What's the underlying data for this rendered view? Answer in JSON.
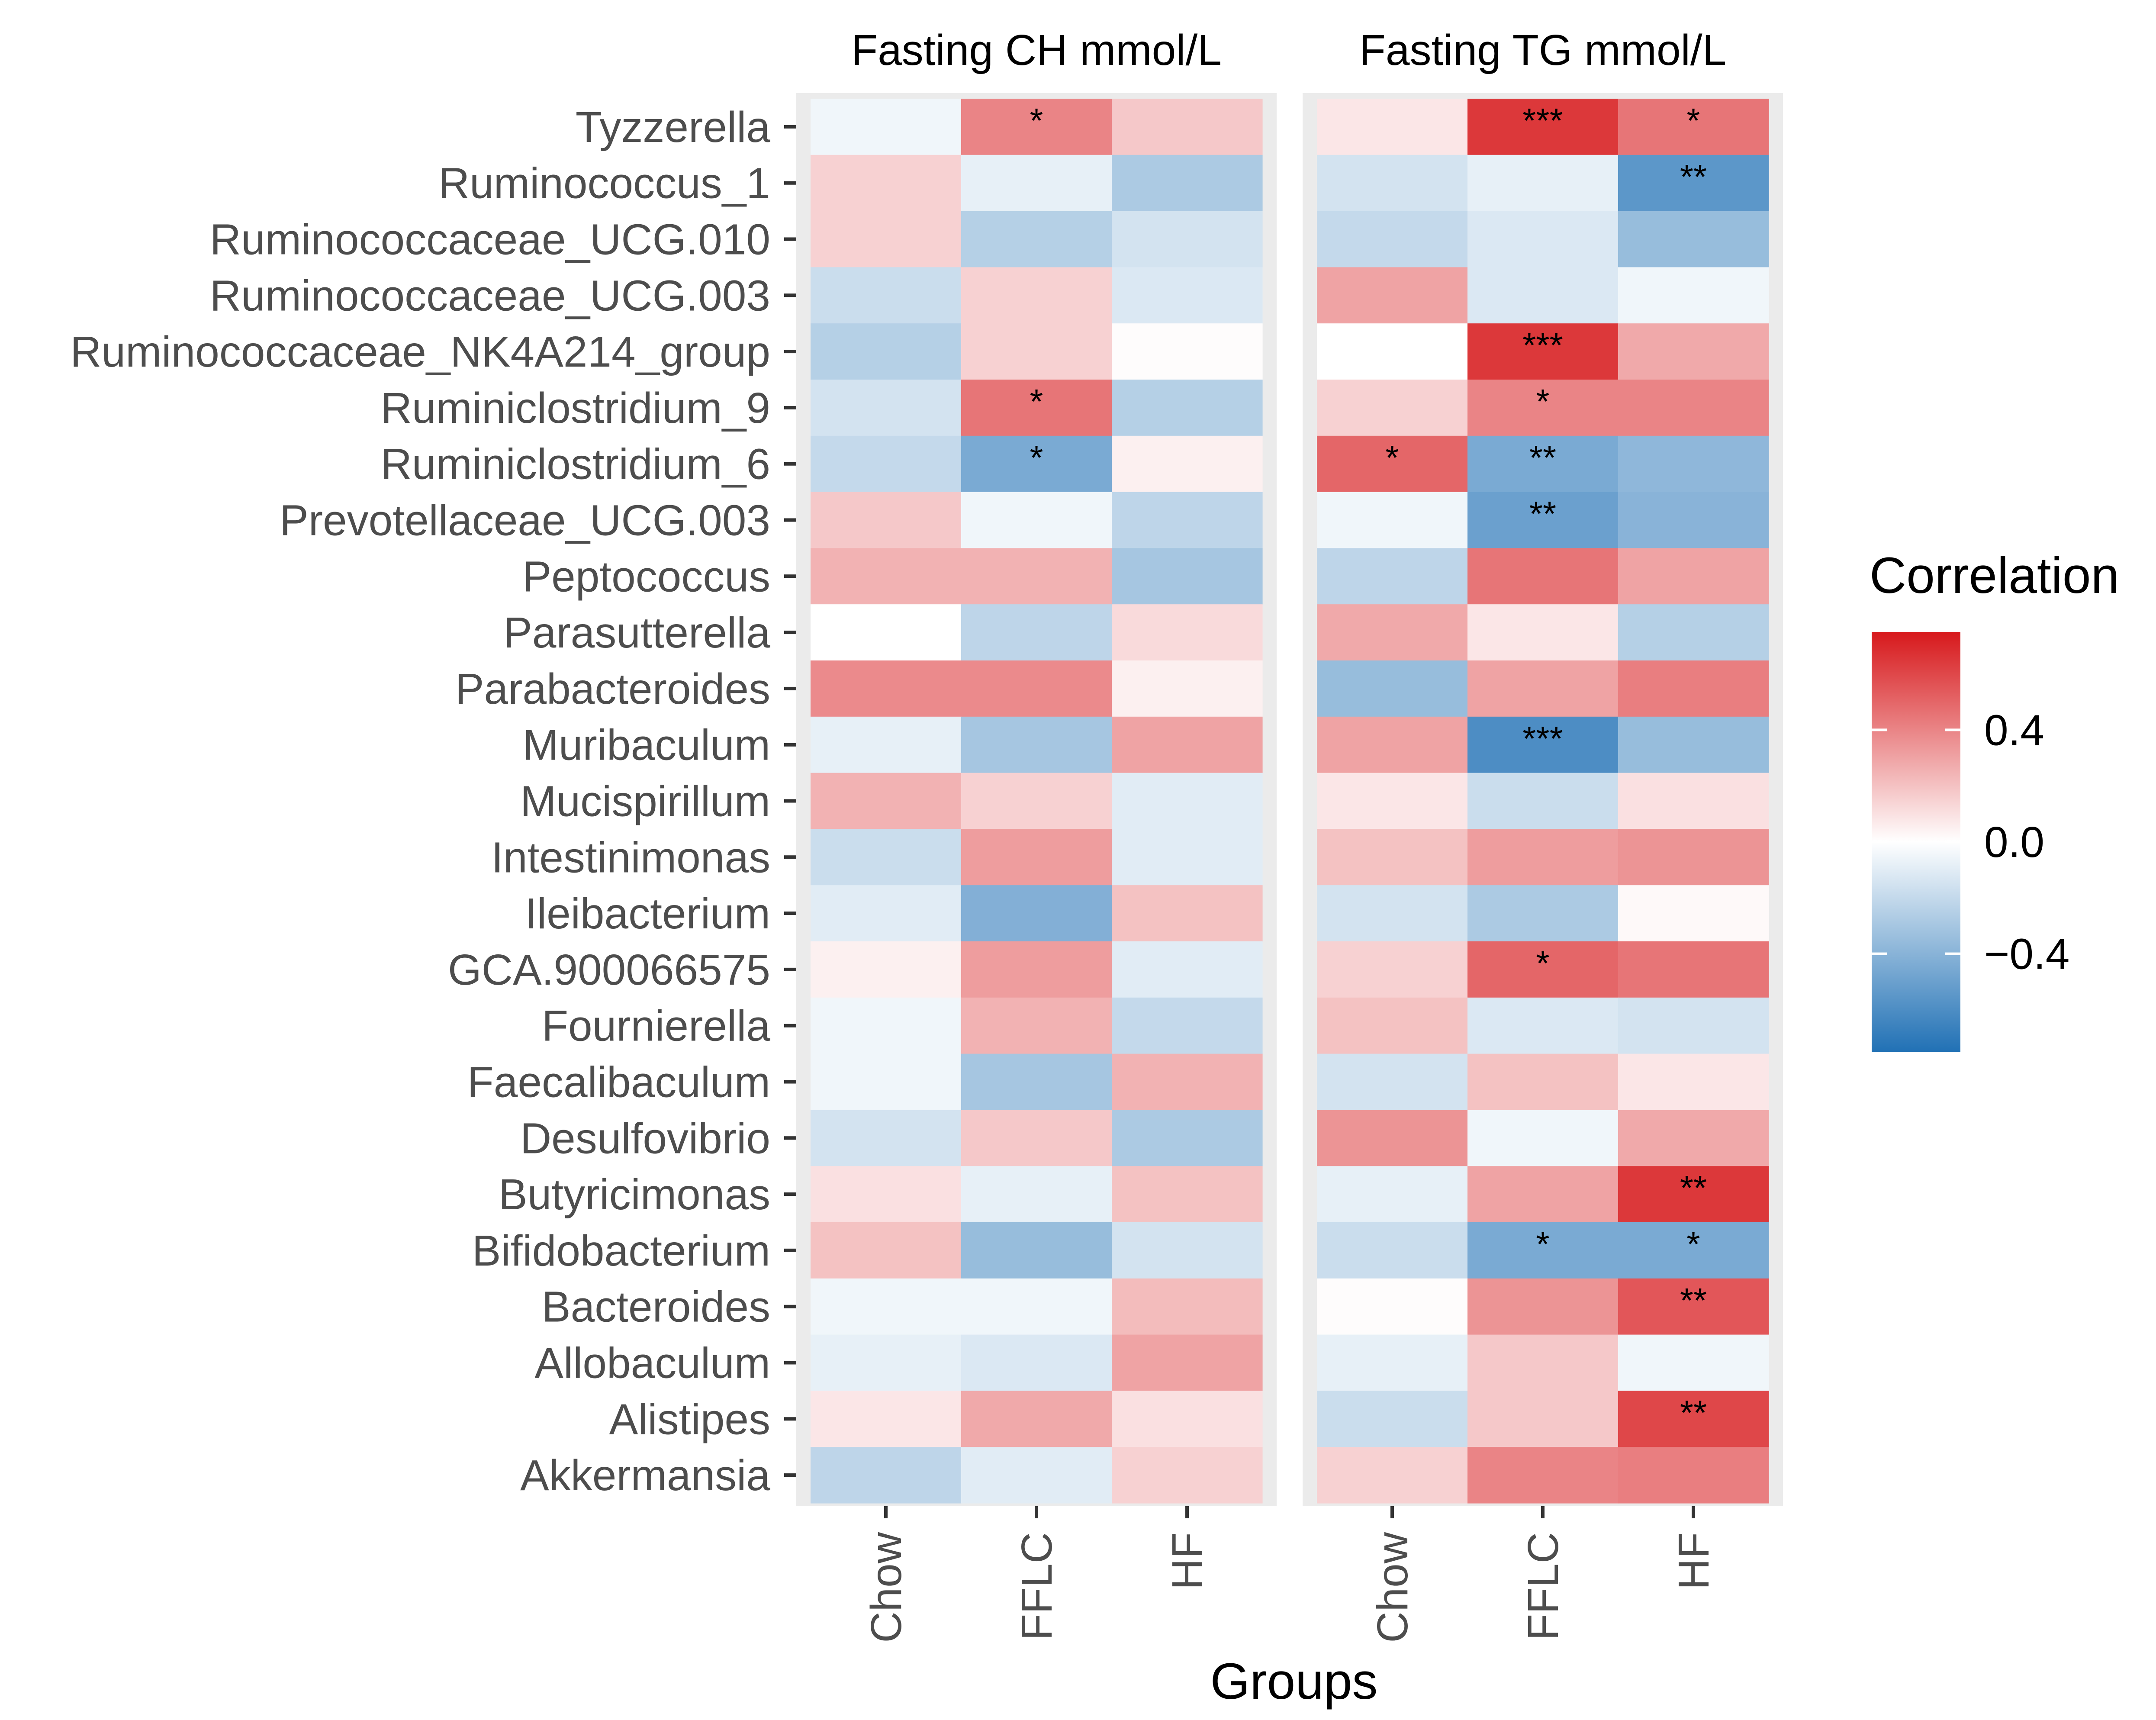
{
  "chart_data": {
    "type": "heatmap",
    "xlabel": "Groups",
    "groups": [
      "Chow",
      "FFLC",
      "HF"
    ],
    "taxa": [
      "Tyzzerella",
      "Ruminococcus_1",
      "Ruminococcaceae_UCG.010",
      "Ruminococcaceae_UCG.003",
      "Ruminococcaceae_NK4A214_group",
      "Ruminiclostridium_9",
      "Ruminiclostridium_6",
      "Prevotellaceae_UCG.003",
      "Peptococcus",
      "Parasutterella",
      "Parabacteroides",
      "Muribaculum",
      "Mucispirillum",
      "Intestinimonas",
      "Ileibacterium",
      "GCA.900066575",
      "Fournierella",
      "Faecalibaculum",
      "Desulfovibrio",
      "Butyricimonas",
      "Bifidobacterium",
      "Bacteroides",
      "Allobaculum",
      "Alistipes",
      "Akkermansia"
    ],
    "panels": [
      {
        "title": "Fasting CH mmol/L",
        "values": [
          [
            -0.05,
            0.4,
            0.18
          ],
          [
            0.15,
            -0.08,
            -0.28
          ],
          [
            0.15,
            -0.25,
            -0.15
          ],
          [
            -0.18,
            0.15,
            -0.12
          ],
          [
            -0.25,
            0.15,
            0.01
          ],
          [
            -0.15,
            0.45,
            -0.25
          ],
          [
            -0.2,
            -0.45,
            0.05
          ],
          [
            0.18,
            -0.05,
            -0.22
          ],
          [
            0.25,
            0.25,
            -0.3
          ],
          [
            0.0,
            -0.22,
            0.12
          ],
          [
            0.38,
            0.38,
            0.05
          ],
          [
            -0.08,
            -0.3,
            0.3
          ],
          [
            0.25,
            0.15,
            -0.1
          ],
          [
            -0.18,
            0.32,
            -0.1
          ],
          [
            -0.1,
            -0.42,
            0.2
          ],
          [
            0.05,
            0.32,
            -0.1
          ],
          [
            -0.05,
            0.25,
            -0.2
          ],
          [
            -0.05,
            -0.3,
            0.25
          ],
          [
            -0.15,
            0.18,
            -0.28
          ],
          [
            0.1,
            -0.08,
            0.2
          ],
          [
            0.2,
            -0.35,
            -0.15
          ],
          [
            -0.05,
            -0.05,
            0.22
          ],
          [
            -0.08,
            -0.12,
            0.3
          ],
          [
            0.08,
            0.28,
            0.1
          ],
          [
            -0.22,
            -0.1,
            0.15
          ]
        ],
        "significance": [
          [
            "",
            "*",
            ""
          ],
          [
            "",
            "",
            ""
          ],
          [
            "",
            "",
            ""
          ],
          [
            "",
            "",
            ""
          ],
          [
            "",
            "",
            ""
          ],
          [
            "",
            "*",
            ""
          ],
          [
            "",
            "*",
            ""
          ],
          [
            "",
            "",
            ""
          ],
          [
            "",
            "",
            ""
          ],
          [
            "",
            "",
            ""
          ],
          [
            "",
            "",
            ""
          ],
          [
            "",
            "",
            ""
          ],
          [
            "",
            "",
            ""
          ],
          [
            "",
            "",
            ""
          ],
          [
            "",
            "",
            ""
          ],
          [
            "",
            "",
            ""
          ],
          [
            "",
            "",
            ""
          ],
          [
            "",
            "",
            ""
          ],
          [
            "",
            "",
            ""
          ],
          [
            "",
            "",
            ""
          ],
          [
            "",
            "",
            ""
          ],
          [
            "",
            "",
            ""
          ],
          [
            "",
            "",
            ""
          ],
          [
            "",
            "",
            ""
          ],
          [
            "",
            "",
            ""
          ]
        ]
      },
      {
        "title": "Fasting TG mmol/L",
        "values": [
          [
            0.08,
            0.65,
            0.45
          ],
          [
            -0.15,
            -0.08,
            -0.55
          ],
          [
            -0.2,
            -0.12,
            -0.35
          ],
          [
            0.3,
            -0.12,
            -0.05
          ],
          [
            0.0,
            0.65,
            0.28
          ],
          [
            0.15,
            0.4,
            0.4
          ],
          [
            0.5,
            -0.45,
            -0.38
          ],
          [
            -0.05,
            -0.5,
            -0.4
          ],
          [
            -0.22,
            0.45,
            0.3
          ],
          [
            0.28,
            0.08,
            -0.25
          ],
          [
            -0.35,
            0.3,
            0.42
          ],
          [
            0.3,
            -0.6,
            -0.35
          ],
          [
            0.08,
            -0.18,
            0.1
          ],
          [
            0.2,
            0.32,
            0.35
          ],
          [
            -0.15,
            -0.28,
            0.02
          ],
          [
            0.15,
            0.5,
            0.45
          ],
          [
            0.2,
            -0.12,
            -0.15
          ],
          [
            -0.15,
            0.2,
            0.08
          ],
          [
            0.35,
            -0.05,
            0.28
          ],
          [
            -0.08,
            0.3,
            0.65
          ],
          [
            -0.18,
            -0.45,
            -0.45
          ],
          [
            0.01,
            0.35,
            0.55
          ],
          [
            -0.08,
            0.18,
            -0.05
          ],
          [
            -0.18,
            0.18,
            0.6
          ],
          [
            0.15,
            0.4,
            0.42
          ]
        ],
        "significance": [
          [
            "",
            "***",
            "*"
          ],
          [
            "",
            "",
            "**"
          ],
          [
            "",
            "",
            ""
          ],
          [
            "",
            "",
            ""
          ],
          [
            "",
            "***",
            ""
          ],
          [
            "",
            "*",
            ""
          ],
          [
            "*",
            "**",
            ""
          ],
          [
            "",
            "**",
            ""
          ],
          [
            "",
            "",
            ""
          ],
          [
            "",
            "",
            ""
          ],
          [
            "",
            "",
            ""
          ],
          [
            "",
            "***",
            ""
          ],
          [
            "",
            "",
            ""
          ],
          [
            "",
            "",
            ""
          ],
          [
            "",
            "",
            ""
          ],
          [
            "",
            "*",
            ""
          ],
          [
            "",
            "",
            ""
          ],
          [
            "",
            "",
            ""
          ],
          [
            "",
            "",
            ""
          ],
          [
            "",
            "",
            "**"
          ],
          [
            "",
            "*",
            "*"
          ],
          [
            "",
            "",
            "**"
          ],
          [
            "",
            "",
            ""
          ],
          [
            "",
            "",
            "**"
          ],
          [
            "",
            "",
            ""
          ]
        ]
      }
    ],
    "legend": {
      "title": "Correlation",
      "ticks": [
        {
          "value": 0.4,
          "label": "0.4"
        },
        {
          "value": 0.0,
          "label": "0.0"
        },
        {
          "value": -0.4,
          "label": "−0.4"
        }
      ],
      "range": [
        -0.75,
        0.75
      ],
      "placement": "right"
    },
    "colors": {
      "high": "#d7191c",
      "mid": "#ffffff",
      "low": "#2171b5",
      "panel_bg": "#ebebeb"
    }
  }
}
